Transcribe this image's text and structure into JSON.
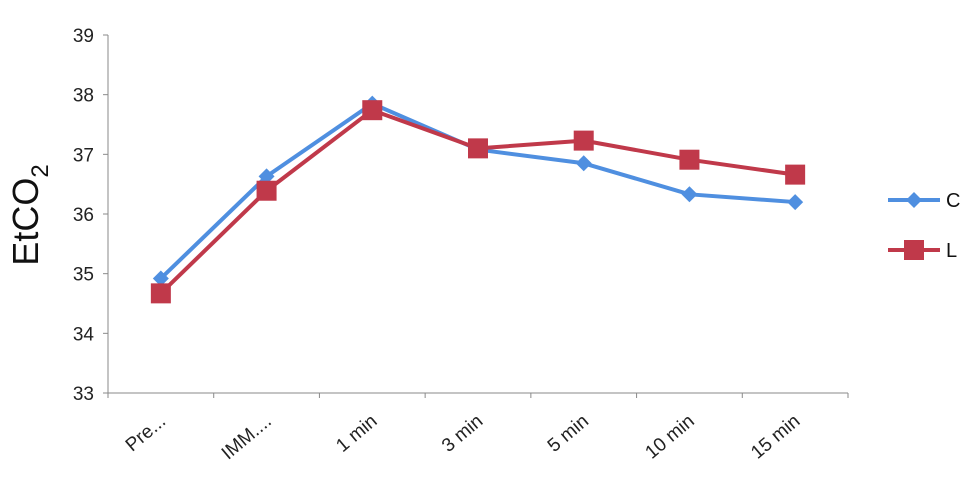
{
  "chart_data": {
    "type": "line",
    "categories": [
      "Pre...",
      "IMM....",
      "1 min",
      "3 min",
      "5 min",
      "10 min",
      "15 min"
    ],
    "series": [
      {
        "name": "C",
        "values": [
          34.92,
          36.63,
          37.85,
          37.08,
          36.85,
          36.33,
          36.2
        ],
        "color": "#4F8FE0",
        "marker": "diamond"
      },
      {
        "name": "L",
        "values": [
          34.67,
          36.39,
          37.74,
          37.1,
          37.23,
          36.91,
          36.66
        ],
        "color": "#C0394A",
        "marker": "square"
      }
    ],
    "ylabel_main": "EtCO",
    "ylabel_sub": "2",
    "ylim": [
      33,
      39
    ],
    "yticks": [
      "33",
      "34",
      "35",
      "36",
      "37",
      "38",
      "39"
    ],
    "grid": false,
    "legend_position": "right"
  }
}
